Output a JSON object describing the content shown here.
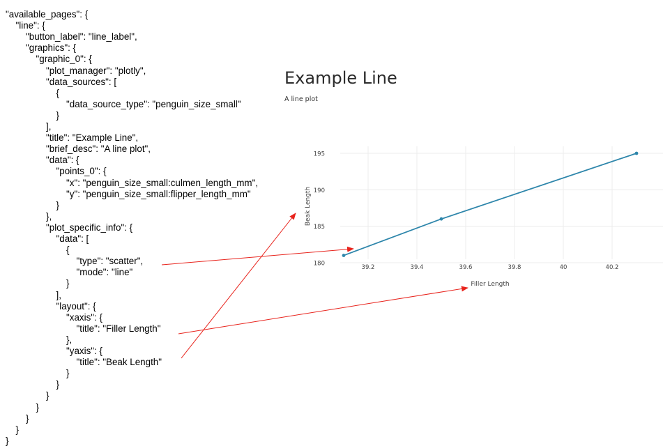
{
  "code_lines": [
    {
      "indent": 0,
      "text": "\"available_pages\": {"
    },
    {
      "indent": 1,
      "text": "\"line\": {"
    },
    {
      "indent": 2,
      "text": "\"button_label\": \"line_label\","
    },
    {
      "indent": 2,
      "text": "\"graphics\": {"
    },
    {
      "indent": 3,
      "text": "\"graphic_0\": {"
    },
    {
      "indent": 4,
      "text": "\"plot_manager\": \"plotly\","
    },
    {
      "indent": 4,
      "text": "\"data_sources\": ["
    },
    {
      "indent": 5,
      "text": "{"
    },
    {
      "indent": 6,
      "text": "\"data_source_type\": \"penguin_size_small\""
    },
    {
      "indent": 5,
      "text": "}"
    },
    {
      "indent": 4,
      "text": "],"
    },
    {
      "indent": 4,
      "text": "\"title\": \"Example Line\","
    },
    {
      "indent": 4,
      "text": "\"brief_desc\": \"A line plot\","
    },
    {
      "indent": 4,
      "text": "\"data\": {"
    },
    {
      "indent": 5,
      "text": "\"points_0\": {"
    },
    {
      "indent": 6,
      "text": "\"x\": \"penguin_size_small:culmen_length_mm\","
    },
    {
      "indent": 6,
      "text": "\"y\": \"penguin_size_small:flipper_length_mm\""
    },
    {
      "indent": 5,
      "text": "}"
    },
    {
      "indent": 4,
      "text": "},"
    },
    {
      "indent": 4,
      "text": "\"plot_specific_info\": {"
    },
    {
      "indent": 5,
      "text": "\"data\": ["
    },
    {
      "indent": 6,
      "text": "{"
    },
    {
      "indent": 7,
      "text": "\"type\": \"scatter\","
    },
    {
      "indent": 7,
      "text": "\"mode\": \"line\""
    },
    {
      "indent": 6,
      "text": "}"
    },
    {
      "indent": 5,
      "text": "],"
    },
    {
      "indent": 5,
      "text": "\"layout\": {"
    },
    {
      "indent": 6,
      "text": "\"xaxis\": {"
    },
    {
      "indent": 7,
      "text": "\"title\": \"Filler Length\""
    },
    {
      "indent": 6,
      "text": "},"
    },
    {
      "indent": 6,
      "text": "\"yaxis\": {"
    },
    {
      "indent": 7,
      "text": "\"title\": \"Beak Length\""
    },
    {
      "indent": 6,
      "text": "}"
    },
    {
      "indent": 5,
      "text": "}"
    },
    {
      "indent": 4,
      "text": "}"
    },
    {
      "indent": 3,
      "text": "}"
    },
    {
      "indent": 2,
      "text": "}"
    },
    {
      "indent": 1,
      "text": "}"
    },
    {
      "indent": 0,
      "text": "}"
    }
  ],
  "plot": {
    "title": "Example Line",
    "brief_desc": "A line plot"
  },
  "chart_data": {
    "type": "line",
    "x": [
      39.1,
      39.5,
      40.3
    ],
    "y": [
      181,
      186,
      195
    ],
    "xlabel": "Filler Length",
    "ylabel": "Beak Length",
    "xticks": [
      "39.2",
      "39.4",
      "39.6",
      "39.8",
      "40",
      "40.2"
    ],
    "xtick_values": [
      39.2,
      39.4,
      39.6,
      39.8,
      40,
      40.2
    ],
    "yticks": [
      "180",
      "185",
      "190",
      "195"
    ],
    "ytick_values": [
      180,
      185,
      190,
      195
    ],
    "xlim": [
      39.1,
      40.3
    ],
    "ylim": [
      180,
      195
    ],
    "grid": true,
    "line_color": "#2e86ab",
    "arrow_color": "#e8231c"
  }
}
